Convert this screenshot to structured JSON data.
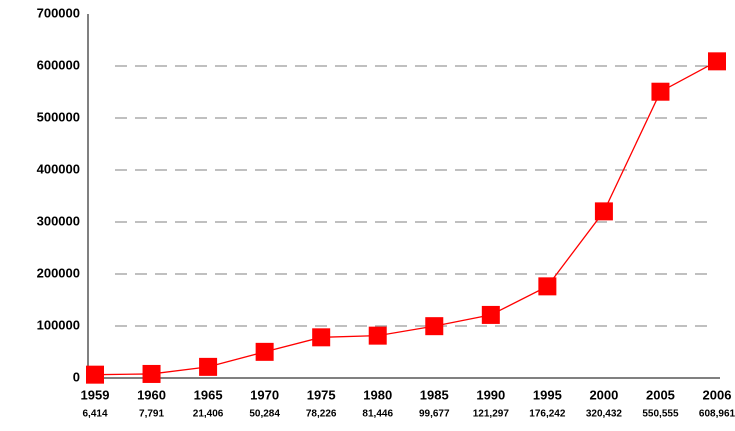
{
  "chart_data": {
    "type": "line",
    "categories": [
      "1959",
      "1960",
      "1965",
      "1970",
      "1975",
      "1980",
      "1985",
      "1990",
      "1995",
      "2000",
      "2005",
      "2006"
    ],
    "values": [
      6414,
      7791,
      21406,
      50284,
      78226,
      81446,
      99677,
      121297,
      176242,
      320432,
      550555,
      608961
    ],
    "value_labels": [
      "6,414",
      "7,791",
      "21,406",
      "50,284",
      "78,226",
      "81,446",
      "99,677",
      "121,297",
      "176,242",
      "320,432",
      "550,555",
      "608,961"
    ],
    "color": "#ff0000",
    "ylim": [
      0,
      700000
    ],
    "yticks": [
      0,
      100000,
      200000,
      300000,
      400000,
      500000,
      600000,
      700000
    ],
    "grid": true
  }
}
